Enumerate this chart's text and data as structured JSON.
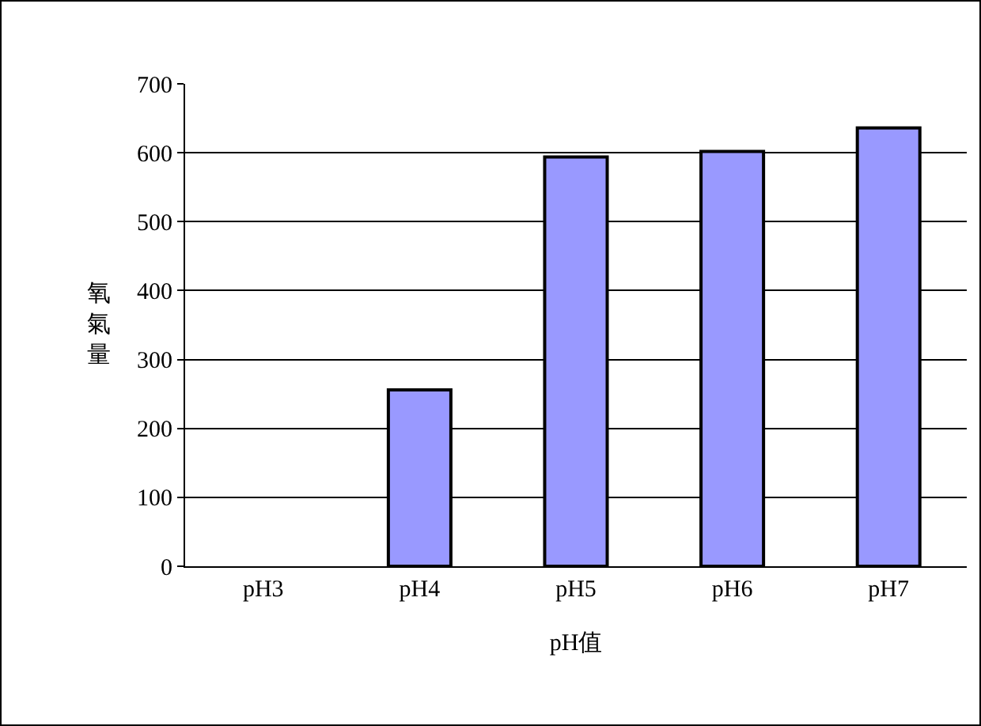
{
  "chart_data": {
    "type": "bar",
    "xlabel": "pH值",
    "ylabel": "氧氣量",
    "categories": [
      "pH3",
      "pH4",
      "pH5",
      "pH6",
      "pH7"
    ],
    "values": [
      0,
      256,
      594,
      602,
      636
    ],
    "color": "#9999ff",
    "ylim": [
      0,
      700
    ],
    "yticks": [
      0,
      100,
      200,
      300,
      400,
      500,
      600,
      700
    ],
    "grid": "y",
    "legend": false
  }
}
